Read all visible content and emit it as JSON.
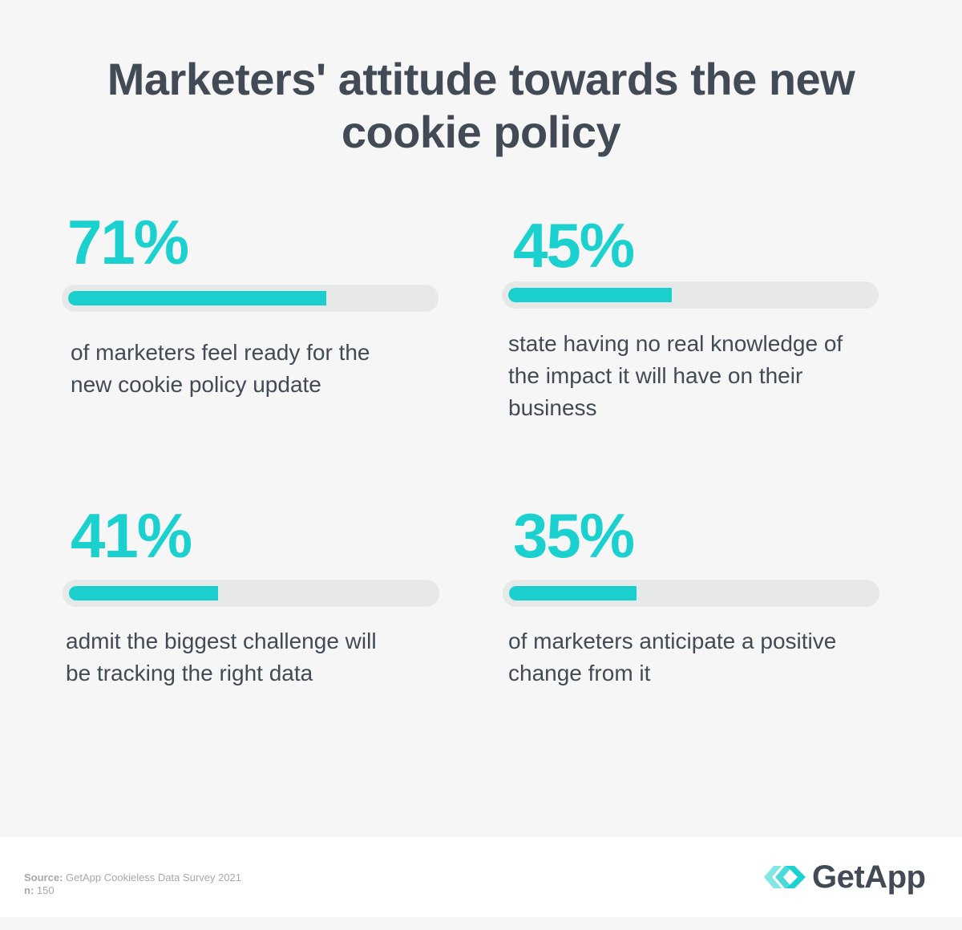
{
  "title_line1": "Marketers' attitude towards the new",
  "title_line2": "cookie policy",
  "stats": [
    {
      "percent_label": "71%",
      "value": 71,
      "desc_line1": "of marketers feel ready for the",
      "desc_line2": "new cookie policy update",
      "desc_line3": ""
    },
    {
      "percent_label": "45%",
      "value": 45,
      "desc_line1": "state having no real knowledge of",
      "desc_line2": "the impact it will have on their",
      "desc_line3": "business"
    },
    {
      "percent_label": "41%",
      "value": 41,
      "desc_line1": "admit the biggest challenge will",
      "desc_line2": "be tracking the right data",
      "desc_line3": ""
    },
    {
      "percent_label": "35%",
      "value": 35,
      "desc_line1": "of marketers anticipate a positive",
      "desc_line2": "change from it",
      "desc_line3": ""
    }
  ],
  "footer": {
    "source_label": "Source:",
    "source_text": "GetApp Cookieless Data Survey 2021",
    "n_label": "n:",
    "n_text": "150",
    "logo_text": "GetApp"
  },
  "colors": {
    "accent": "#1bd1cf",
    "text": "#414a55",
    "track": "#e7e8e8"
  },
  "chart_data": {
    "type": "bar",
    "categories": [
      "of marketers feel ready for the new cookie policy update",
      "state having no real knowledge of the impact it will have on their business",
      "admit the biggest challenge will be tracking the right data",
      "of marketers anticipate a positive change from it"
    ],
    "values": [
      71,
      45,
      41,
      35
    ],
    "title": "Marketers' attitude towards the new cookie policy",
    "ylim": [
      0,
      100
    ]
  }
}
